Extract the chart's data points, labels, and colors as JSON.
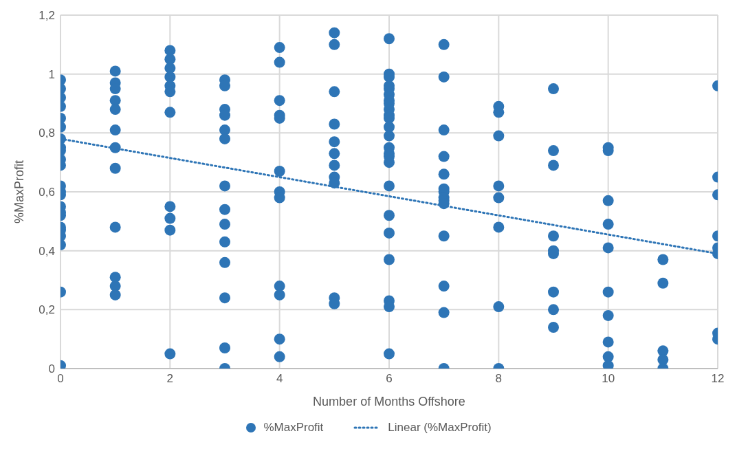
{
  "chart_data": {
    "type": "scatter",
    "xlabel": "Number of Months Offshore",
    "ylabel": "%MaxProfit",
    "xlim": [
      0,
      12
    ],
    "xticks": [
      0,
      2,
      4,
      6,
      8,
      10,
      12
    ],
    "ylim": [
      0,
      1.2
    ],
    "yticks": [
      0,
      {
        "value": 0.2,
        "label": "0,2"
      },
      {
        "value": 0.4,
        "label": "0,4"
      },
      {
        "value": 0.6,
        "label": "0,6"
      },
      {
        "value": 0.8,
        "label": "0,8"
      },
      1,
      {
        "value": 1.2,
        "label": "1,2"
      }
    ],
    "grid": true,
    "legend": "bottom",
    "series": [
      {
        "name": "%MaxProfit",
        "color": "#2e75b6",
        "marker": "circle",
        "x": [
          0,
          0,
          0,
          0,
          0,
          0,
          0,
          0,
          0,
          0,
          0,
          0,
          0,
          0,
          0,
          0,
          0,
          0,
          0,
          0,
          0,
          0,
          0,
          1,
          1,
          1,
          1,
          1,
          1,
          1,
          1,
          1,
          1,
          1,
          1,
          2,
          2,
          2,
          2,
          2,
          2,
          2,
          2,
          2,
          2,
          2,
          3,
          3,
          3,
          3,
          3,
          3,
          3,
          3,
          3,
          3,
          3,
          3,
          3,
          3,
          4,
          4,
          4,
          4,
          4,
          4,
          4,
          4,
          4,
          4,
          4,
          4,
          5,
          5,
          5,
          5,
          5,
          5,
          5,
          5,
          5,
          5,
          5,
          6,
          6,
          6,
          6,
          6,
          6,
          6,
          6,
          6,
          6,
          6,
          6,
          6,
          6,
          6,
          6,
          6,
          6,
          6,
          6,
          6,
          6,
          6,
          6,
          7,
          7,
          7,
          7,
          7,
          7,
          7,
          7,
          7,
          7,
          7,
          7,
          7,
          7,
          8,
          8,
          8,
          8,
          8,
          8,
          8,
          8,
          9,
          9,
          9,
          9,
          9,
          9,
          9,
          9,
          9,
          10,
          10,
          10,
          10,
          10,
          10,
          10,
          10,
          10,
          10,
          11,
          11,
          11,
          11,
          11,
          12,
          12,
          12,
          12,
          12,
          12,
          12,
          12
        ],
        "values": [
          0.98,
          0.95,
          0.92,
          0.89,
          0.85,
          0.82,
          0.78,
          0.75,
          0.74,
          0.71,
          0.69,
          0.62,
          0.6,
          0.59,
          0.55,
          0.53,
          0.52,
          0.48,
          0.47,
          0.45,
          0.42,
          0.26,
          0.01,
          1.01,
          0.97,
          0.95,
          0.91,
          0.88,
          0.81,
          0.75,
          0.68,
          0.48,
          0.31,
          0.28,
          0.25,
          1.08,
          1.05,
          1.02,
          0.99,
          0.96,
          0.94,
          0.87,
          0.55,
          0.51,
          0.47,
          0.05,
          0.98,
          0.96,
          0.88,
          0.86,
          0.81,
          0.78,
          0.62,
          0.54,
          0.49,
          0.43,
          0.36,
          0.24,
          0.07,
          0,
          1.09,
          1.04,
          0.91,
          0.86,
          0.85,
          0.67,
          0.6,
          0.58,
          0.28,
          0.25,
          0.1,
          0.04,
          1.14,
          1.1,
          0.94,
          0.83,
          0.77,
          0.73,
          0.69,
          0.65,
          0.63,
          0.24,
          0.22,
          1.12,
          1.0,
          0.99,
          0.96,
          0.95,
          0.93,
          0.91,
          0.9,
          0.88,
          0.86,
          0.85,
          0.82,
          0.79,
          0.75,
          0.73,
          0.72,
          0.7,
          0.62,
          0.52,
          0.46,
          0.37,
          0.23,
          0.21,
          0.05,
          1.1,
          0.99,
          0.81,
          0.72,
          0.66,
          0.61,
          0.6,
          0.58,
          0.57,
          0.56,
          0.45,
          0.28,
          0.19,
          0,
          0.89,
          0.87,
          0.79,
          0.62,
          0.58,
          0.48,
          0.21,
          0,
          0.95,
          0.74,
          0.69,
          0.45,
          0.4,
          0.39,
          0.26,
          0.2,
          0.14,
          0.75,
          0.74,
          0.57,
          0.49,
          0.41,
          0.26,
          0.18,
          0.09,
          0.04,
          0.01,
          0.37,
          0.29,
          0.06,
          0.03,
          0,
          0.96,
          0.65,
          0.59,
          0.45,
          0.41,
          0.39,
          0.12,
          0.1
        ]
      },
      {
        "name": "Linear (%MaxProfit)",
        "type": "line",
        "color": "#2e75b6",
        "line_style": "dotted",
        "marker": "none",
        "x": [
          0,
          12
        ],
        "values": [
          0.78,
          0.39
        ]
      }
    ]
  }
}
